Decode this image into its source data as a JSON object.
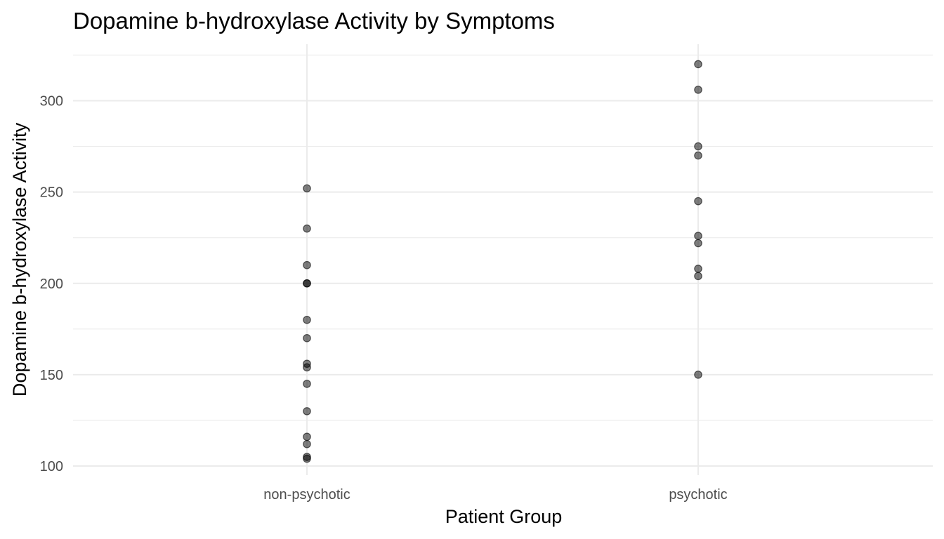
{
  "chart_data": {
    "type": "scatter",
    "title": "Dopamine b-hydroxylase Activity by Symptoms",
    "xlabel": "Patient Group",
    "ylabel": "Dopamine b-hydroxylase Activity",
    "categories": [
      "non-psychotic",
      "psychotic"
    ],
    "ylim": [
      95,
      325
    ],
    "yticks": [
      100,
      150,
      200,
      250,
      300
    ],
    "yminor": [
      125,
      175,
      225,
      275,
      325
    ],
    "grid": true,
    "legend": "none",
    "point_color": "#000000",
    "point_alpha": 0.5,
    "series": [
      {
        "category": "non-psychotic",
        "values": [
          104,
          105,
          112,
          116,
          130,
          145,
          154,
          156,
          170,
          180,
          200,
          200,
          210,
          230,
          252
        ]
      },
      {
        "category": "psychotic",
        "values": [
          150,
          204,
          208,
          222,
          226,
          245,
          270,
          275,
          306,
          320
        ]
      }
    ]
  }
}
